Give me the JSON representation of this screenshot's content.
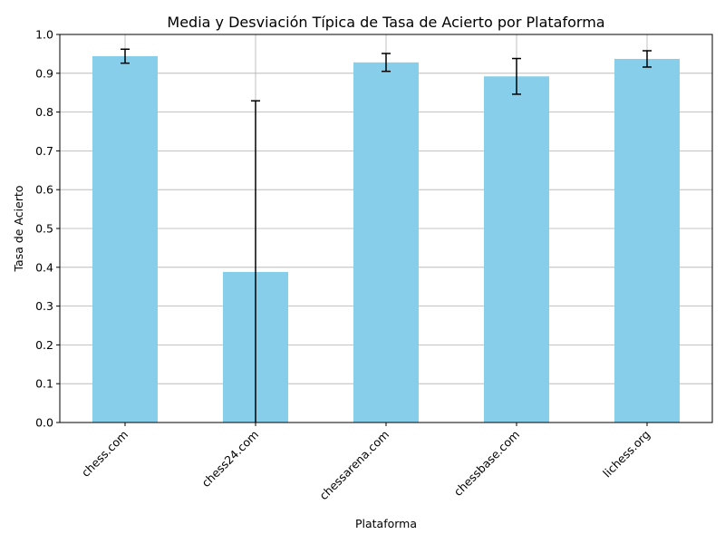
{
  "chart_data": {
    "type": "bar",
    "title": "Media y Desviación Típica de Tasa de Acierto por Plataforma",
    "xlabel": "Plataforma",
    "ylabel": "Tasa de Acierto",
    "categories": [
      "chess.com",
      "chess24.com",
      "chessarena.com",
      "chessbase.com",
      "lichess.org"
    ],
    "values": [
      0.944,
      0.388,
      0.928,
      0.892,
      0.937
    ],
    "error": [
      0.018,
      0.441,
      0.023,
      0.046,
      0.021
    ],
    "ylim": [
      0,
      1.0
    ],
    "yticks": [
      0.0,
      0.1,
      0.2,
      0.3,
      0.4,
      0.5,
      0.6,
      0.7,
      0.8,
      0.9,
      1.0
    ],
    "grid": true,
    "bar_color": "#87CEEB",
    "error_color": "#000000",
    "grid_color": "#b0b0b0"
  }
}
